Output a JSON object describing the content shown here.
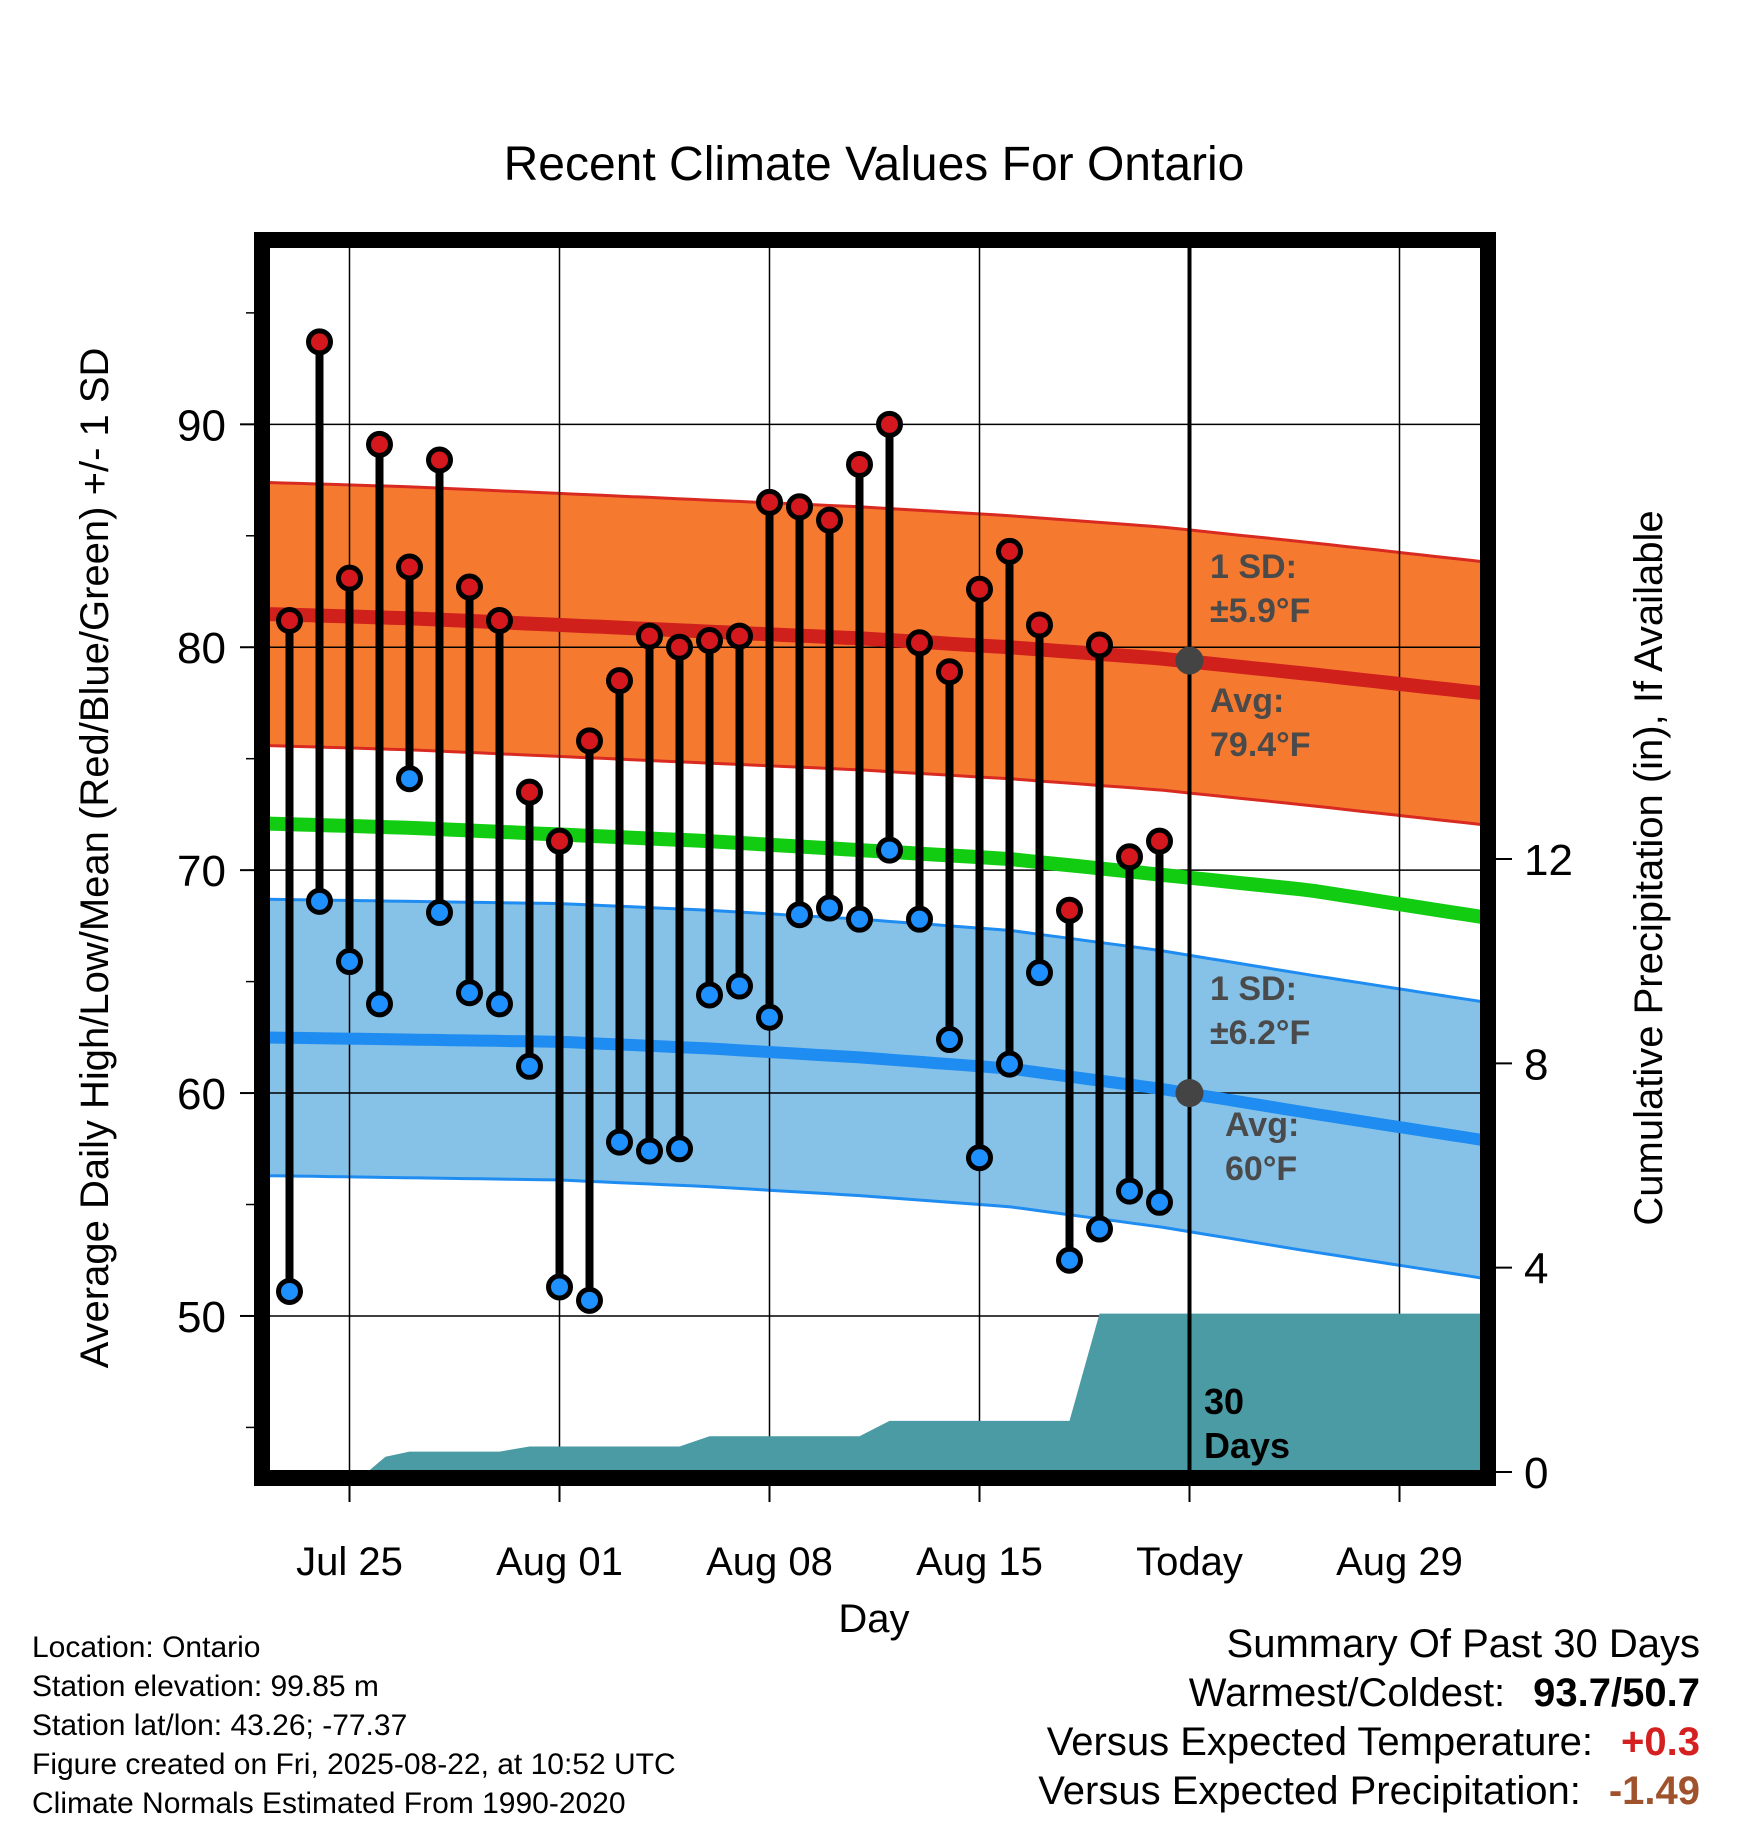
{
  "chart_data": {
    "type": "line",
    "title": "Recent Climate Values For Ontario",
    "xlabel": "Day",
    "ylabel_left": "Average Daily High/Low/Mean (Red/Blue/Green) +/- 1 SD",
    "ylabel_right": "Cumulative Precipitation (in), If Available",
    "x_tick_labels": [
      {
        "day": 3,
        "label": "Jul 25"
      },
      {
        "day": 10,
        "label": "Aug 01"
      },
      {
        "day": 17,
        "label": "Aug 08"
      },
      {
        "day": 24,
        "label": "Aug 15"
      },
      {
        "day": 31,
        "label": "Today"
      },
      {
        "day": 38,
        "label": "Aug 29"
      }
    ],
    "xlim_days": [
      0,
      41.7
    ],
    "today_day": 31,
    "ylim_left": [
      43,
      98
    ],
    "y_ticks_left": [
      50,
      60,
      70,
      80,
      90
    ],
    "y_minor_left": [
      45,
      55,
      65,
      75,
      85,
      95
    ],
    "ylim_right": [
      0,
      24
    ],
    "y_ticks_right": [
      0,
      4,
      8,
      12
    ],
    "colors": {
      "high_band": "#f57a30",
      "high_band_edge": "#d82a20",
      "high_mean": "#d0201c",
      "low_band": "#86c2e8",
      "low_band_edge": "#1e8cf0",
      "low_mean": "#1e8cf0",
      "mean_line": "#11cc11",
      "precip_fill": "#4a9ba3",
      "high_marker": "#d4181e",
      "low_marker": "#1e90ff",
      "today_marker": "#444444"
    },
    "normals": {
      "day": [
        0,
        5,
        10,
        15,
        20,
        25,
        30,
        35,
        41.7
      ],
      "high_mean": [
        81.5,
        81.3,
        81.0,
        80.7,
        80.4,
        80.0,
        79.5,
        78.8,
        77.8
      ],
      "high_sd": 5.9,
      "mean": [
        72.1,
        71.9,
        71.6,
        71.3,
        70.9,
        70.5,
        69.8,
        69.1,
        67.7
      ],
      "low_mean": [
        62.5,
        62.4,
        62.3,
        62.0,
        61.6,
        61.1,
        60.2,
        59.1,
        57.7
      ],
      "low_sd": 6.2
    },
    "series": [
      {
        "name": "Daily High",
        "values": [
          81.2,
          93.7,
          83.1,
          89.1,
          83.6,
          88.4,
          82.7,
          81.2,
          73.5,
          71.3,
          75.8,
          78.5,
          80.5,
          80.0,
          80.3,
          80.5,
          86.5,
          86.3,
          85.7,
          88.2,
          90.0,
          80.2,
          78.9,
          82.6,
          84.3,
          81.0,
          68.2,
          80.1,
          70.6,
          71.3
        ]
      },
      {
        "name": "Daily Low",
        "values": [
          51.1,
          68.6,
          65.9,
          64.0,
          74.1,
          68.1,
          64.5,
          64.0,
          61.2,
          51.3,
          50.7,
          57.8,
          57.4,
          57.5,
          64.4,
          64.8,
          63.4,
          68.0,
          68.3,
          67.8,
          70.9,
          67.8,
          62.4,
          57.1,
          61.3,
          65.4,
          52.5,
          53.9,
          55.6,
          55.1
        ]
      }
    ],
    "days": [
      1,
      2,
      3,
      4,
      5,
      6,
      7,
      8,
      9,
      10,
      11,
      12,
      13,
      14,
      15,
      16,
      17,
      18,
      19,
      20,
      21,
      22,
      23,
      24,
      25,
      26,
      27,
      28,
      29,
      30
    ],
    "precip_cumulative": {
      "day": [
        0,
        3.6,
        4.2,
        5.0,
        7.0,
        8.0,
        9.0,
        10.0,
        11.0,
        14.0,
        15.0,
        20.0,
        21.0,
        25.0,
        27.0,
        28.0,
        41.7
      ],
      "value": [
        0,
        0,
        0.3,
        0.4,
        0.4,
        0.4,
        0.5,
        0.5,
        0.5,
        0.5,
        0.7,
        0.7,
        1.0,
        1.0,
        1.0,
        3.1,
        3.1
      ]
    },
    "annotations": {
      "high_sd_line1": "1 SD:",
      "high_sd_line2": "±5.9°F",
      "high_avg_line1": "Avg:",
      "high_avg_line2": "79.4°F",
      "low_sd_line1": "1 SD:",
      "low_sd_line2": "±6.2°F",
      "low_avg_line1": "Avg:",
      "low_avg_line2": "60°F",
      "days_line1": "30",
      "days_line2": "Days"
    },
    "today_high_avg": 79.4,
    "today_low_avg": 60
  },
  "footer": {
    "location": "Location: Ontario",
    "elevation": "Station elevation: 99.85 m",
    "latlon": "Station lat/lon: 43.26; -77.37",
    "created": "Figure created on Fri, 2025-08-22, at 10:52 UTC",
    "normals": "Climate Normals Estimated From 1990-2020"
  },
  "summary": {
    "heading": "Summary Of Past 30 Days",
    "warm_cold_label": "Warmest/Coldest:",
    "warm_cold_value": "93.7/50.7",
    "temp_label": "Versus Expected Temperature:",
    "temp_value": "+0.3",
    "temp_color": "#d42020",
    "precip_label": "Versus Expected Precipitation:",
    "precip_value": "-1.49",
    "precip_color": "#a0522d"
  }
}
